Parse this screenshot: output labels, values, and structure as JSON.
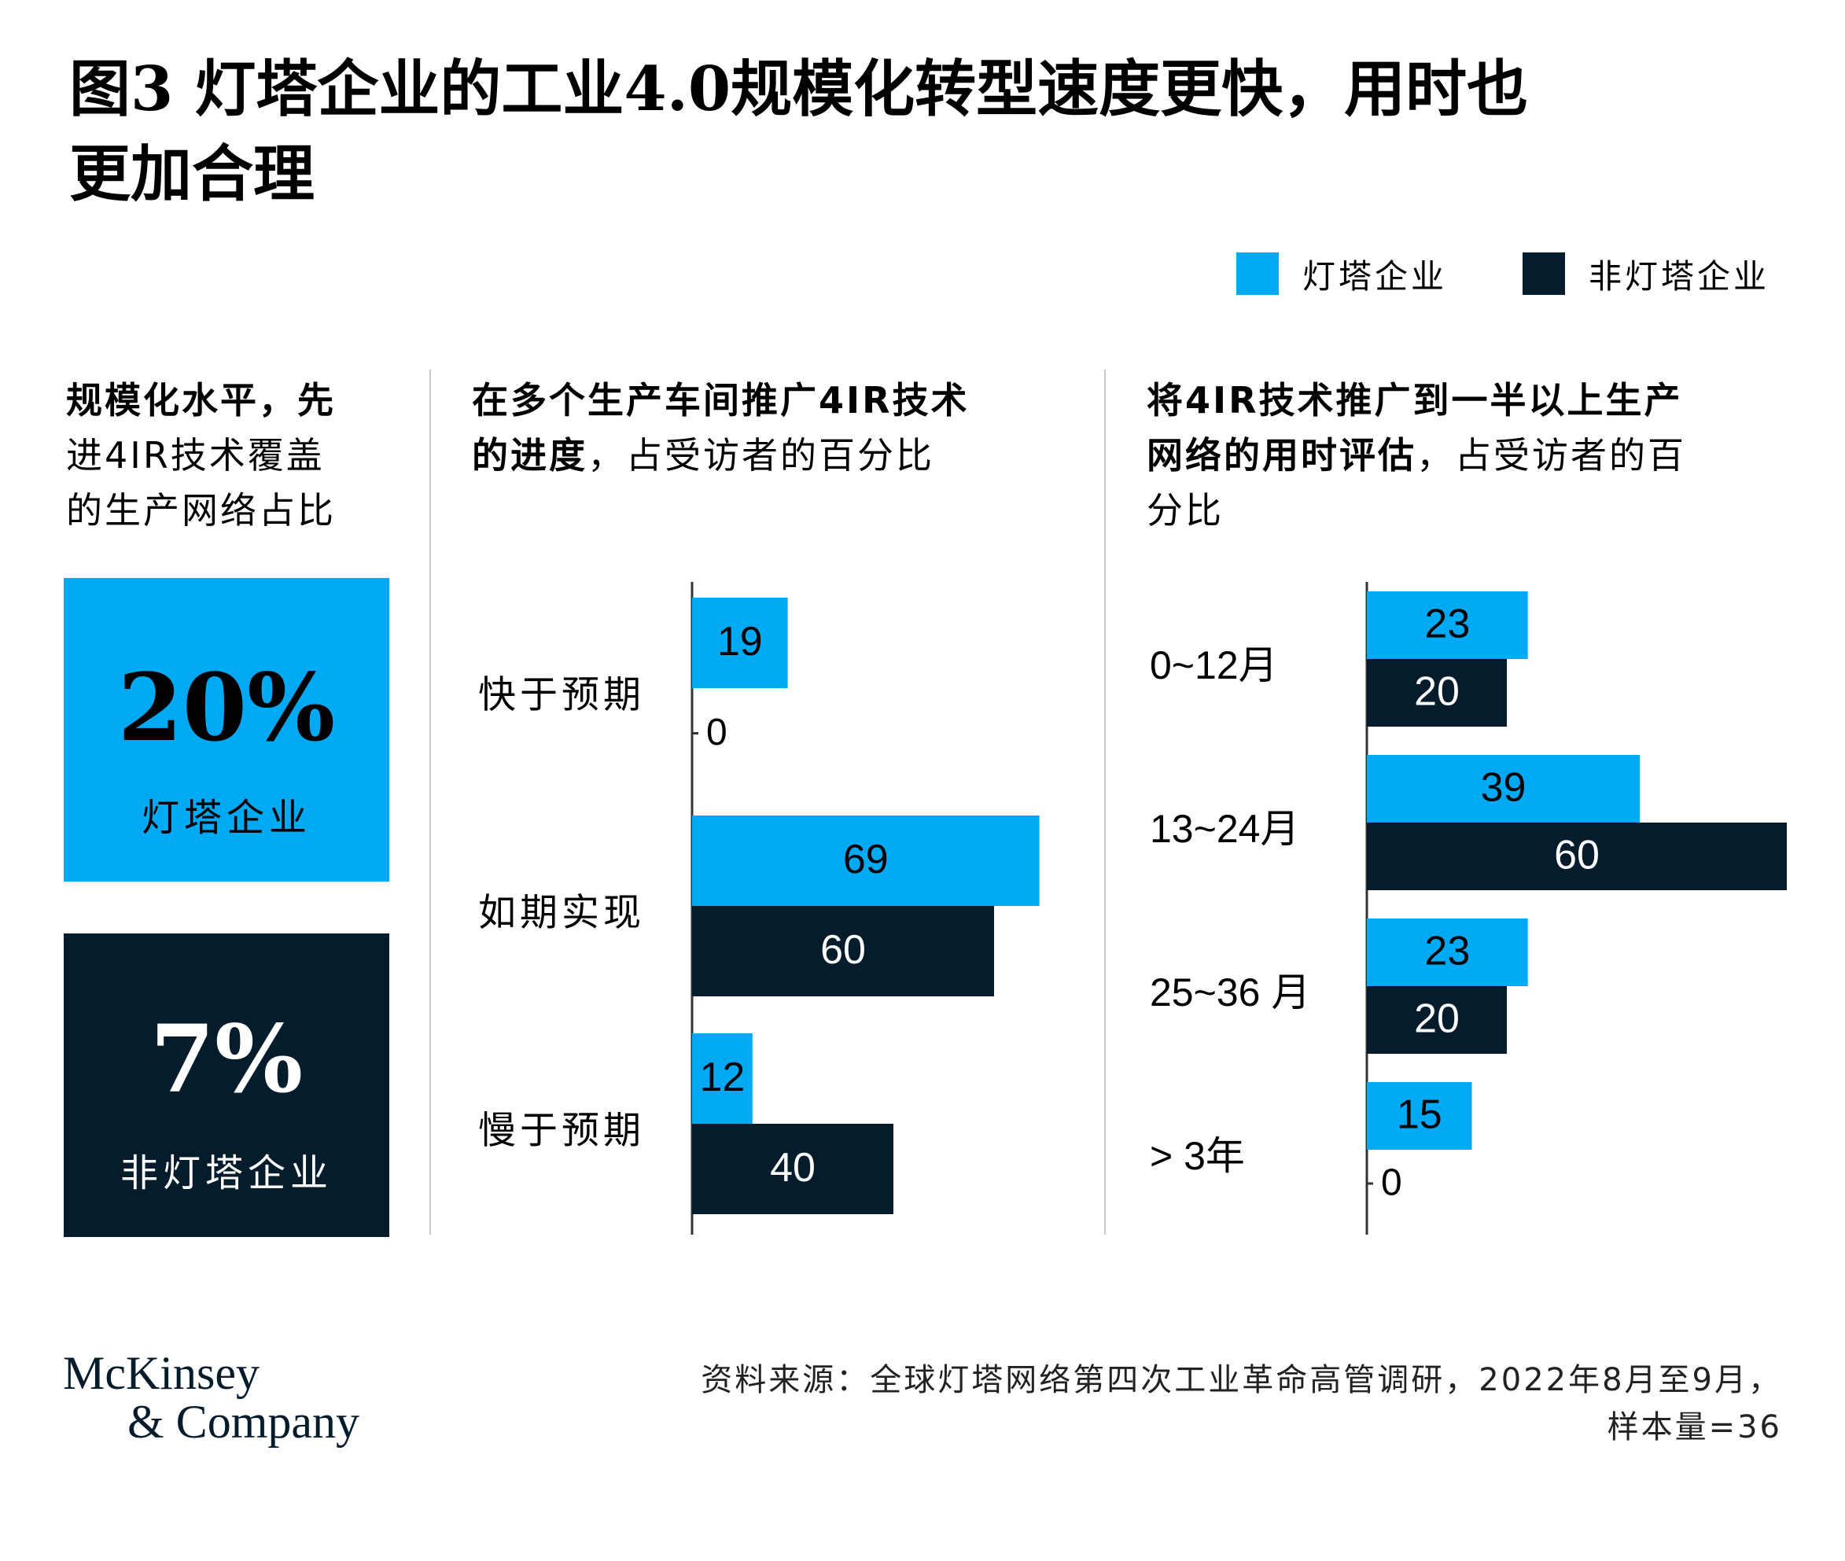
{
  "title_line1": "图3 灯塔企业的工业4.0规模化转型速度更快，用时也",
  "title_line2": "更加合理",
  "legend": [
    {
      "label": "灯塔企业",
      "color": "#00a9f4"
    },
    {
      "label": "非灯塔企业",
      "color": "#051c2c"
    }
  ],
  "panel1": {
    "title_lines": [
      "规模化水平，先",
      "进4IR技术覆盖",
      "的生产网络占比"
    ],
    "kpis": [
      {
        "value": "20%",
        "label": "灯塔企业",
        "color": "#00a9f4"
      },
      {
        "value": "7%",
        "label": "非灯塔企业",
        "color": "#051c2c"
      }
    ]
  },
  "panel2": {
    "title_line1": "在多个生产车间推广4IR技术",
    "title_line2_bold": "的进度",
    "title_line2_rest": "，占受访者的百分比"
  },
  "panel3": {
    "title_line1": "将4IR技术推广到一半以上生产",
    "title_line2_bold": "网络的用时评估",
    "title_line2_rest": "，占受访者的百",
    "title_line3": "分比"
  },
  "chart_data": [
    {
      "type": "bar",
      "orientation": "horizontal",
      "categories": [
        "快于预期",
        "如期实现",
        "慢于预期"
      ],
      "series": [
        {
          "name": "灯塔企业",
          "values": [
            19,
            69,
            12
          ],
          "color": "#00a9f4"
        },
        {
          "name": "非灯塔企业",
          "values": [
            0,
            60,
            40
          ],
          "color": "#051c2c"
        }
      ],
      "xlim": [
        0,
        100
      ],
      "grid": false
    },
    {
      "type": "bar",
      "orientation": "horizontal",
      "categories": [
        "0~12月",
        "13~24月",
        "25~36 月",
        "> 3年"
      ],
      "series": [
        {
          "name": "灯塔企业",
          "values": [
            23,
            39,
            23,
            15
          ],
          "color": "#00a9f4"
        },
        {
          "name": "非灯塔企业",
          "values": [
            20,
            60,
            20,
            0
          ],
          "color": "#051c2c"
        }
      ],
      "xlim": [
        0,
        60
      ],
      "grid": false
    }
  ],
  "footer": {
    "logo_line1": "McKinsey",
    "logo_line2": "& Company",
    "source_line1": "资料来源：全球灯塔网络第四次工业革命高管调研，2022年8月至9月，",
    "source_line2": "样本量=36"
  }
}
